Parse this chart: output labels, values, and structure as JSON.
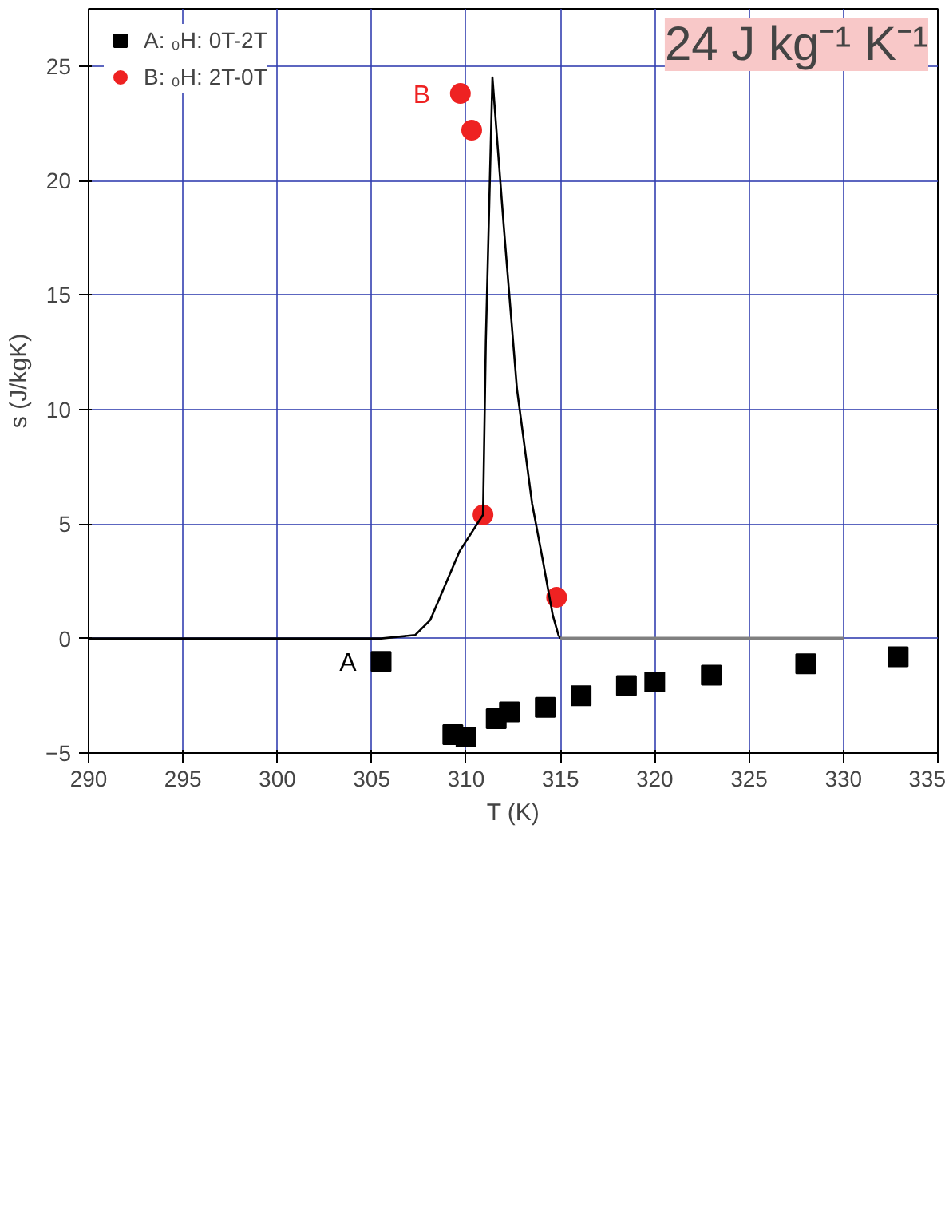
{
  "chart_data": {
    "type": "scatter",
    "xlabel": "T (K)",
    "ylabel": "s (J/kgK)",
    "xlim": [
      290,
      335
    ],
    "ylim": [
      -5,
      27.5
    ],
    "xticks": [
      290,
      295,
      300,
      305,
      310,
      315,
      320,
      325,
      330,
      335
    ],
    "yticks": [
      -5,
      0,
      5,
      10,
      15,
      20,
      25
    ],
    "grid": true,
    "legend": "top left",
    "series": [
      {
        "name": "A: ₀H: 0T-2T",
        "color": "#000000",
        "marker": "square",
        "x": [
          305.5,
          309.3,
          310.0,
          311.6,
          312.3,
          314.2,
          316.1,
          318.5,
          320.0,
          323.0,
          328.0,
          332.9
        ],
        "values": [
          -1.0,
          -4.2,
          -4.3,
          -3.5,
          -3.2,
          -3.0,
          -2.5,
          -2.05,
          -1.9,
          -1.6,
          -1.1,
          -0.8
        ]
      },
      {
        "name": "B: ₀H: 2T-0T",
        "color": "#ee2222",
        "marker": "circle",
        "x": [
          309.7,
          310.3,
          310.9,
          314.8
        ],
        "values": [
          23.8,
          22.2,
          5.4,
          1.8
        ]
      },
      {
        "color": "#000000",
        "type": "line",
        "marker": "none",
        "x": [
          290,
          305.5,
          307.3,
          308.1,
          309.65,
          310.9,
          311.05,
          311.4,
          312.0,
          312.7,
          313.5,
          314.05,
          314.6,
          314.9,
          315.0
        ],
        "values": [
          0,
          0,
          0.15,
          0.8,
          3.8,
          5.4,
          13,
          24.5,
          18,
          10.9,
          5.9,
          3.5,
          1.0,
          0.15,
          0
        ]
      },
      {
        "color": "#808080",
        "type": "line",
        "marker": "none",
        "x": [
          315,
          330
        ],
        "values": [
          0,
          0
        ]
      }
    ],
    "annotations": [
      {
        "text": "A",
        "x": 303.8,
        "y": 0
      },
      {
        "text": "B",
        "x": 309.4,
        "y": 23.8
      },
      "24 J kg⁻¹ K⁻¹"
    ]
  }
}
